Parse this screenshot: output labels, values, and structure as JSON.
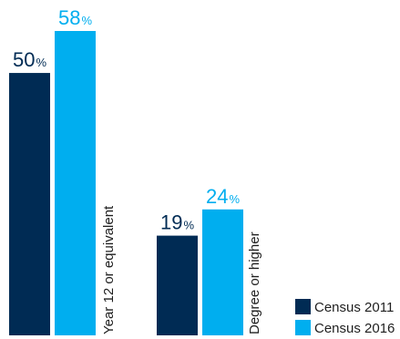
{
  "chart_data": {
    "type": "bar",
    "categories": [
      "Year 12 or equivalent",
      "Degree or higher"
    ],
    "series": [
      {
        "name": "Census 2011",
        "values": [
          50,
          19
        ],
        "color": "#002b54"
      },
      {
        "name": "Census 2016",
        "values": [
          58,
          24
        ],
        "color": "#00aeef"
      }
    ],
    "value_suffix": "%",
    "ylim": [
      0,
      58
    ],
    "grid": false,
    "legend_position": "bottom-right"
  }
}
